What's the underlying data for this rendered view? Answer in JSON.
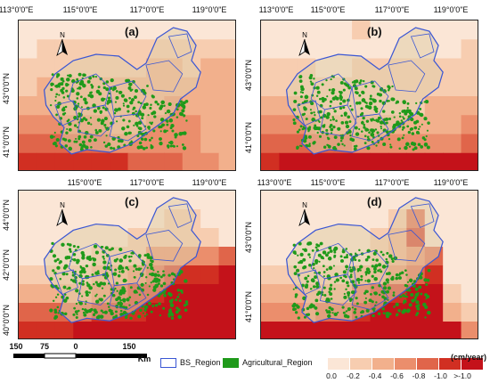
{
  "panels": [
    {
      "label": "(a)",
      "lon_ticks": [
        "113°0'0\"E",
        "115°0'0\"E",
        "117°0'0\"E",
        "119°0'0\"E"
      ],
      "lat_ticks": [
        "43°0'0\"N",
        "41°0'0\"N"
      ]
    },
    {
      "label": "(b)",
      "lon_ticks": [
        "113°0'0\"E",
        "115°0'0\"E",
        "117°0'0\"E",
        "119°0'0\"E"
      ],
      "lat_ticks": [
        "43°0'0\"N",
        "41°0'0\"N"
      ]
    },
    {
      "label": "(c)",
      "lon_ticks": [
        "115°0'0\"E",
        "117°0'0\"E",
        "119°0'0\"E"
      ],
      "lat_ticks": [
        "44°0'0\"N",
        "42°0'0\"N",
        "40°0'0\"N"
      ]
    },
    {
      "label": "(d)",
      "lon_ticks": [
        "113°0'0\"E",
        "115°0'0\"E",
        "117°0'0\"E",
        "119°0'0\"E"
      ],
      "lat_ticks": [
        "43°0'0\"N",
        "41°0'0\"N"
      ]
    }
  ],
  "north_label": "N",
  "scale_bar": {
    "labels": [
      "150",
      "75",
      "0",
      "150"
    ],
    "unit": "Km"
  },
  "legend": {
    "bs_region": "BS_Region",
    "agri_region": "Agricultural_Region",
    "unit": "(cm/year)",
    "class_labels": [
      "0.0",
      "-0.2",
      "-0.4",
      "-0.6",
      "-0.8",
      "-1.0",
      ">-1.0"
    ],
    "class_colors": [
      "#fbe6d6",
      "#f7cdb0",
      "#f2b08c",
      "#eb8e6c",
      "#e0654a",
      "#d12f22",
      "#c4121a"
    ],
    "boundary_color": "#3a56d4",
    "agri_color": "#1f9a1a"
  }
}
